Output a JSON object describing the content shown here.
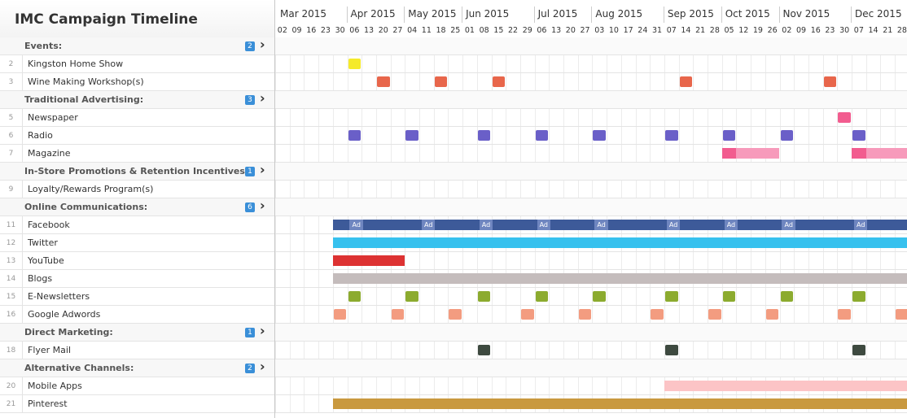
{
  "title": "IMC Campaign Timeline",
  "months": [
    "Mar 2015",
    "Apr 2015",
    "May 2015",
    "Jun 2015",
    "Jul 2015",
    "Aug 2015",
    "Sep 2015",
    "Oct 2015",
    "Nov 2015",
    "Dec 2015"
  ],
  "days": [
    "02",
    "09",
    "16",
    "23",
    "30",
    "06",
    "13",
    "20",
    "27",
    "04",
    "11",
    "18",
    "25",
    "01",
    "08",
    "15",
    "22",
    "29",
    "06",
    "13",
    "20",
    "27",
    "03",
    "10",
    "17",
    "24",
    "31",
    "07",
    "14",
    "21",
    "28",
    "05",
    "12",
    "19",
    "26",
    "02",
    "09",
    "16",
    "23",
    "30",
    "07",
    "14",
    "21",
    "28"
  ],
  "ad_label": "Ad",
  "rows": [
    {
      "type": "group",
      "label": "Events:",
      "badge": "2"
    },
    {
      "type": "item",
      "num": "2",
      "label": "Kingston Home Show"
    },
    {
      "type": "item",
      "num": "3",
      "label": "Wine Making Workshop(s)"
    },
    {
      "type": "group",
      "label": "Traditional Advertising:",
      "badge": "3"
    },
    {
      "type": "item",
      "num": "5",
      "label": "Newspaper"
    },
    {
      "type": "item",
      "num": "6",
      "label": "Radio"
    },
    {
      "type": "item",
      "num": "7",
      "label": "Magazine"
    },
    {
      "type": "group",
      "label": "In-Store Promotions & Retention Incentives",
      "badge": "1"
    },
    {
      "type": "item",
      "num": "9",
      "label": "Loyalty/Rewards Program(s)"
    },
    {
      "type": "group",
      "label": "Online Communications:",
      "badge": "6"
    },
    {
      "type": "item",
      "num": "11",
      "label": "Facebook"
    },
    {
      "type": "item",
      "num": "12",
      "label": "Twitter"
    },
    {
      "type": "item",
      "num": "13",
      "label": "YouTube"
    },
    {
      "type": "item",
      "num": "14",
      "label": "Blogs"
    },
    {
      "type": "item",
      "num": "15",
      "label": "E-Newsletters"
    },
    {
      "type": "item",
      "num": "16",
      "label": "Google Adwords"
    },
    {
      "type": "group",
      "label": "Direct Marketing:",
      "badge": "1"
    },
    {
      "type": "item",
      "num": "18",
      "label": "Flyer Mail"
    },
    {
      "type": "group",
      "label": "Alternative Channels:",
      "badge": "2"
    },
    {
      "type": "item",
      "num": "20",
      "label": "Mobile Apps"
    },
    {
      "type": "item",
      "num": "21",
      "label": "Pinterest"
    }
  ],
  "colors": {
    "event_show": "#f5ea2a",
    "workshop": "#e8664b",
    "newspaper": "#f25c8f",
    "radio": "#6a5fc8",
    "magazine_dark": "#f25c8f",
    "magazine_light": "#f79abb",
    "facebook": "#3d5a99",
    "twitter": "#37c1ee",
    "youtube": "#dd3232",
    "blogs": "#c4bcbc",
    "newsletter": "#8cab2f",
    "adwords": "#f39c80",
    "flyer": "#3e4a40",
    "mobile": "#fcc4c6",
    "pinterest": "#c9993f",
    "badge": "#3a8fd8"
  },
  "bars": [
    {
      "row": 1,
      "from": 5,
      "to": 6,
      "color": "event_show",
      "sq": true
    },
    {
      "row": 2,
      "from": 7,
      "to": 8,
      "color": "workshop",
      "sq": true
    },
    {
      "row": 2,
      "from": 11,
      "to": 12,
      "color": "workshop",
      "sq": true
    },
    {
      "row": 2,
      "from": 15,
      "to": 16,
      "color": "workshop",
      "sq": true
    },
    {
      "row": 2,
      "from": 28,
      "to": 29,
      "color": "workshop",
      "sq": true
    },
    {
      "row": 2,
      "from": 38,
      "to": 39,
      "color": "workshop",
      "sq": true
    },
    {
      "row": 4,
      "from": 39,
      "to": 40,
      "color": "newspaper",
      "sq": true
    },
    {
      "row": 5,
      "from": 5,
      "to": 6,
      "color": "radio",
      "sq": true
    },
    {
      "row": 5,
      "from": 9,
      "to": 10,
      "color": "radio",
      "sq": true
    },
    {
      "row": 5,
      "from": 14,
      "to": 15,
      "color": "radio",
      "sq": true
    },
    {
      "row": 5,
      "from": 18,
      "to": 19,
      "color": "radio",
      "sq": true
    },
    {
      "row": 5,
      "from": 22,
      "to": 23,
      "color": "radio",
      "sq": true
    },
    {
      "row": 5,
      "from": 27,
      "to": 28,
      "color": "radio",
      "sq": true
    },
    {
      "row": 5,
      "from": 31,
      "to": 32,
      "color": "radio",
      "sq": true
    },
    {
      "row": 5,
      "from": 35,
      "to": 36,
      "color": "radio",
      "sq": true
    },
    {
      "row": 5,
      "from": 40,
      "to": 41,
      "color": "radio",
      "sq": true
    },
    {
      "row": 6,
      "from": 31,
      "to": 32,
      "color": "magazine_dark"
    },
    {
      "row": 6,
      "from": 32,
      "to": 35,
      "color": "magazine_light"
    },
    {
      "row": 6,
      "from": 40,
      "to": 41,
      "color": "magazine_dark"
    },
    {
      "row": 6,
      "from": 41,
      "to": 44,
      "color": "magazine_light"
    },
    {
      "row": 10,
      "from": 4,
      "to": 44,
      "color": "facebook",
      "ads": [
        5,
        10,
        14,
        18,
        22,
        27,
        31,
        35,
        40
      ]
    },
    {
      "row": 11,
      "from": 4,
      "to": 44,
      "color": "twitter"
    },
    {
      "row": 12,
      "from": 4,
      "to": 9,
      "color": "youtube"
    },
    {
      "row": 13,
      "from": 4,
      "to": 44,
      "color": "blogs"
    },
    {
      "row": 14,
      "from": 5,
      "to": 6,
      "color": "newsletter",
      "sq": true
    },
    {
      "row": 14,
      "from": 9,
      "to": 10,
      "color": "newsletter",
      "sq": true
    },
    {
      "row": 14,
      "from": 14,
      "to": 15,
      "color": "newsletter",
      "sq": true
    },
    {
      "row": 14,
      "from": 18,
      "to": 19,
      "color": "newsletter",
      "sq": true
    },
    {
      "row": 14,
      "from": 22,
      "to": 23,
      "color": "newsletter",
      "sq": true
    },
    {
      "row": 14,
      "from": 27,
      "to": 28,
      "color": "newsletter",
      "sq": true
    },
    {
      "row": 14,
      "from": 31,
      "to": 32,
      "color": "newsletter",
      "sq": true
    },
    {
      "row": 14,
      "from": 35,
      "to": 36,
      "color": "newsletter",
      "sq": true
    },
    {
      "row": 14,
      "from": 40,
      "to": 41,
      "color": "newsletter",
      "sq": true
    },
    {
      "row": 15,
      "from": 4,
      "to": 5,
      "color": "adwords",
      "sq": true
    },
    {
      "row": 15,
      "from": 8,
      "to": 9,
      "color": "adwords",
      "sq": true
    },
    {
      "row": 15,
      "from": 12,
      "to": 13,
      "color": "adwords",
      "sq": true
    },
    {
      "row": 15,
      "from": 17,
      "to": 18,
      "color": "adwords",
      "sq": true
    },
    {
      "row": 15,
      "from": 21,
      "to": 22,
      "color": "adwords",
      "sq": true
    },
    {
      "row": 15,
      "from": 26,
      "to": 27,
      "color": "adwords",
      "sq": true
    },
    {
      "row": 15,
      "from": 30,
      "to": 31,
      "color": "adwords",
      "sq": true
    },
    {
      "row": 15,
      "from": 34,
      "to": 35,
      "color": "adwords",
      "sq": true
    },
    {
      "row": 15,
      "from": 39,
      "to": 40,
      "color": "adwords",
      "sq": true
    },
    {
      "row": 15,
      "from": 43,
      "to": 44,
      "color": "adwords",
      "sq": true
    },
    {
      "row": 17,
      "from": 14,
      "to": 15,
      "color": "flyer",
      "sq": true
    },
    {
      "row": 17,
      "from": 27,
      "to": 28,
      "color": "flyer",
      "sq": true
    },
    {
      "row": 17,
      "from": 40,
      "to": 41,
      "color": "flyer",
      "sq": true
    },
    {
      "row": 19,
      "from": 27,
      "to": 44,
      "color": "mobile"
    },
    {
      "row": 20,
      "from": 4,
      "to": 44,
      "color": "pinterest"
    }
  ]
}
